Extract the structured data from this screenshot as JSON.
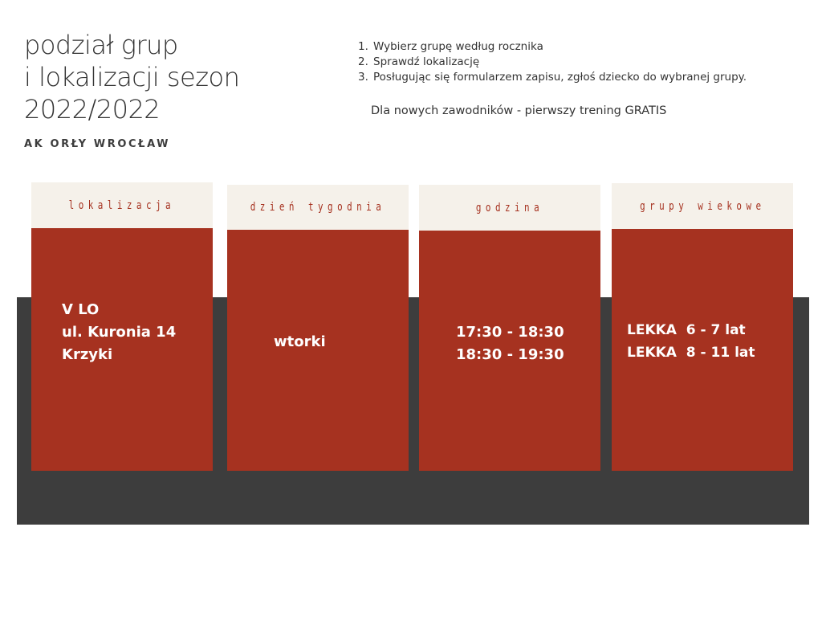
{
  "header": {
    "title_lines": [
      "podział grup",
      "i lokalizacji sezon",
      "2022/2022"
    ],
    "subtitle": "AK ORŁY WROCŁAW"
  },
  "steps": [
    {
      "num": "1.",
      "text": "Wybierz grupę według rocznika"
    },
    {
      "num": "2.",
      "text": "Sprawdź lokalizację"
    },
    {
      "num": "3.",
      "text": "Posługując się formularzem zapisu, zgłoś dziecko do wybranej grupy."
    }
  ],
  "note": "Dla nowych zawodników - pierwszy trening GRATIS",
  "columns": [
    {
      "header": "lokalizacja",
      "lines": [
        "V LO",
        "ul. Kuronia 14",
        "Krzyki"
      ]
    },
    {
      "header": "dzień tygodnia",
      "lines": [
        "wtorki"
      ]
    },
    {
      "header": "godzina",
      "lines": [
        "17:30 - 18:30",
        "18:30 - 19:30"
      ]
    },
    {
      "header": "grupy wiekowe",
      "lines": [
        "LEKKA  6 - 7 lat",
        "LEKKA  8 - 11 lat"
      ]
    }
  ],
  "colors": {
    "accent_red": "#a63220",
    "header_cream": "#f5f1ea",
    "band_dark": "#3d3d3d",
    "text_dark": "#333333"
  }
}
